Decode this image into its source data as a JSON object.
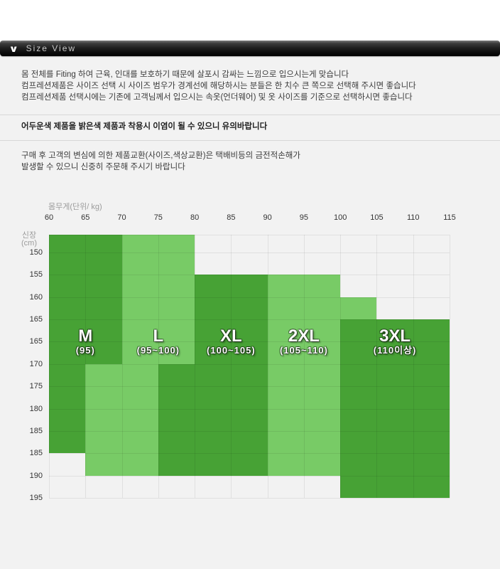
{
  "header": {
    "title": "Size View",
    "chevron_icon": "∨"
  },
  "notices": {
    "fitting_lines": [
      "몸 전체를 Fiting 하여 근육, 인대를 보호하기 때문에 살포시 감싸는 느낌으로 입으시는게 맞습니다",
      "컴프레션제품은 사이즈 선택 시 사이즈 범우가 경계선에 해당하시는 분들은 한 치수 큰 쪽으로 선택해 주시면 좋습니다",
      "컴프레션제품 선택시에는 기존에 고객님께서 입으시는 속옷(언더웨어) 및 옷 사이즈를 기준으로 선택하시면 좋습니다"
    ],
    "color_warning": "어두운색 제품을 밝은색 제품과 착용시 이염이 될 수 있으니 유의바랍니다",
    "exchange_lines": [
      "구매 후 고객의 변심에 의한 제품교환(사이즈,색상교환)은 택배비등의 금전적손해가",
      "발생할 수 있으니 신중히 주문해 주시기 바랍니다"
    ]
  },
  "chart_data": {
    "type": "heatmap",
    "title": "",
    "x_axis_title": "몸무게(단위/ kg)",
    "y_axis_title": [
      "신장",
      "(cm)"
    ],
    "x_ticks": [
      "60",
      "65",
      "70",
      "75",
      "80",
      "85",
      "90",
      "95",
      "100",
      "105",
      "110",
      "115"
    ],
    "y_ticks": [
      "150",
      "155",
      "160",
      "165",
      "165",
      "170",
      "175",
      "180",
      "185",
      "185",
      "190",
      "195"
    ],
    "colors": {
      "dark_green": "#47a235",
      "light_green": "#78cb66",
      "grid_line": "rgba(0,0,0,0.075)",
      "background": "#f2f2f2"
    },
    "regions": [
      {
        "size": "m",
        "label": "M",
        "sublabel": "(95)",
        "shade": "dark",
        "label_center_col": 1,
        "rects": [
          {
            "c0": 0,
            "c1": 2,
            "r0": 0,
            "r1": 6
          },
          {
            "c0": 0,
            "c1": 1,
            "r0": 6,
            "r1": 10
          }
        ]
      },
      {
        "size": "l",
        "label": "L",
        "sublabel": "(95~100)",
        "shade": "light",
        "label_center_col": 3,
        "rects": [
          {
            "c0": 2,
            "c1": 4,
            "r0": 0,
            "r1": 6
          },
          {
            "c0": 1,
            "c1": 3,
            "r0": 6,
            "r1": 11
          }
        ]
      },
      {
        "size": "xl",
        "label": "XL",
        "sublabel": "(100~105)",
        "shade": "dark",
        "label_center_col": 5,
        "rects": [
          {
            "c0": 4,
            "c1": 6,
            "r0": 2,
            "r1": 6
          },
          {
            "c0": 3,
            "c1": 6,
            "r0": 6,
            "r1": 11
          }
        ]
      },
      {
        "size": "2xl",
        "label": "2XL",
        "sublabel": "(105~110)",
        "shade": "light",
        "label_center_col": 7,
        "rects": [
          {
            "c0": 6,
            "c1": 8,
            "r0": 2,
            "r1": 11
          },
          {
            "c0": 8,
            "c1": 9,
            "r0": 3,
            "r1": 4
          }
        ]
      },
      {
        "size": "3xl",
        "label": "3XL",
        "sublabel": "(110이상)",
        "shade": "dark",
        "label_center_col": 9.5,
        "rects": [
          {
            "c0": 8,
            "c1": 11,
            "r0": 4,
            "r1": 12
          }
        ]
      }
    ]
  }
}
